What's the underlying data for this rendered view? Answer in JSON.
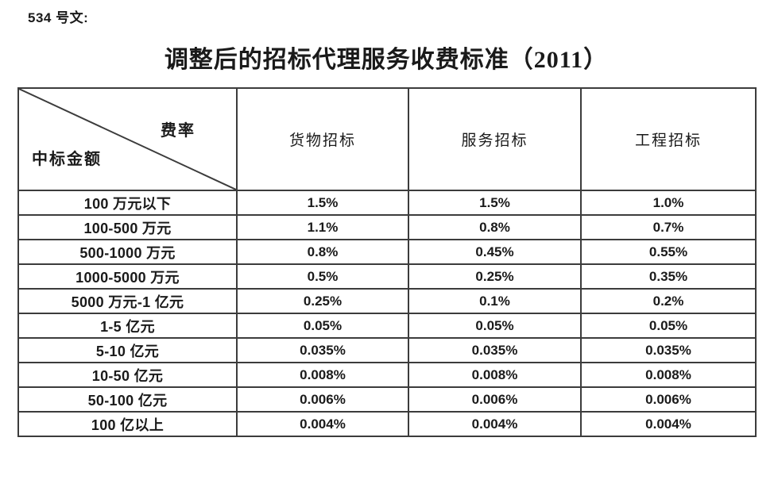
{
  "document": {
    "ref": "534 号文:",
    "title": "调整后的招标代理服务收费标准（2011）"
  },
  "table": {
    "corner": {
      "top_right": "费率",
      "bottom_left": "中标金额"
    },
    "columns": [
      "货物招标",
      "服务招标",
      "工程招标"
    ],
    "rows": [
      {
        "label": "100 万元以下",
        "values": [
          "1.5%",
          "1.5%",
          "1.0%"
        ]
      },
      {
        "label": "100-500 万元",
        "values": [
          "1.1%",
          "0.8%",
          "0.7%"
        ]
      },
      {
        "label": "500-1000 万元",
        "values": [
          "0.8%",
          "0.45%",
          "0.55%"
        ]
      },
      {
        "label": "1000-5000 万元",
        "values": [
          "0.5%",
          "0.25%",
          "0.35%"
        ]
      },
      {
        "label": "5000 万元-1 亿元",
        "values": [
          "0.25%",
          "0.1%",
          "0.2%"
        ]
      },
      {
        "label": "1-5 亿元",
        "values": [
          "0.05%",
          "0.05%",
          "0.05%"
        ]
      },
      {
        "label": "5-10 亿元",
        "values": [
          "0.035%",
          "0.035%",
          "0.035%"
        ]
      },
      {
        "label": "10-50 亿元",
        "values": [
          "0.008%",
          "0.008%",
          "0.008%"
        ]
      },
      {
        "label": "50-100 亿元",
        "values": [
          "0.006%",
          "0.006%",
          "0.006%"
        ]
      },
      {
        "label": "100 亿以上",
        "values": [
          "0.004%",
          "0.004%",
          "0.004%"
        ]
      }
    ]
  },
  "colors": {
    "text": "#1a1a1a",
    "border": "#3c3c3c",
    "background": "#ffffff"
  }
}
